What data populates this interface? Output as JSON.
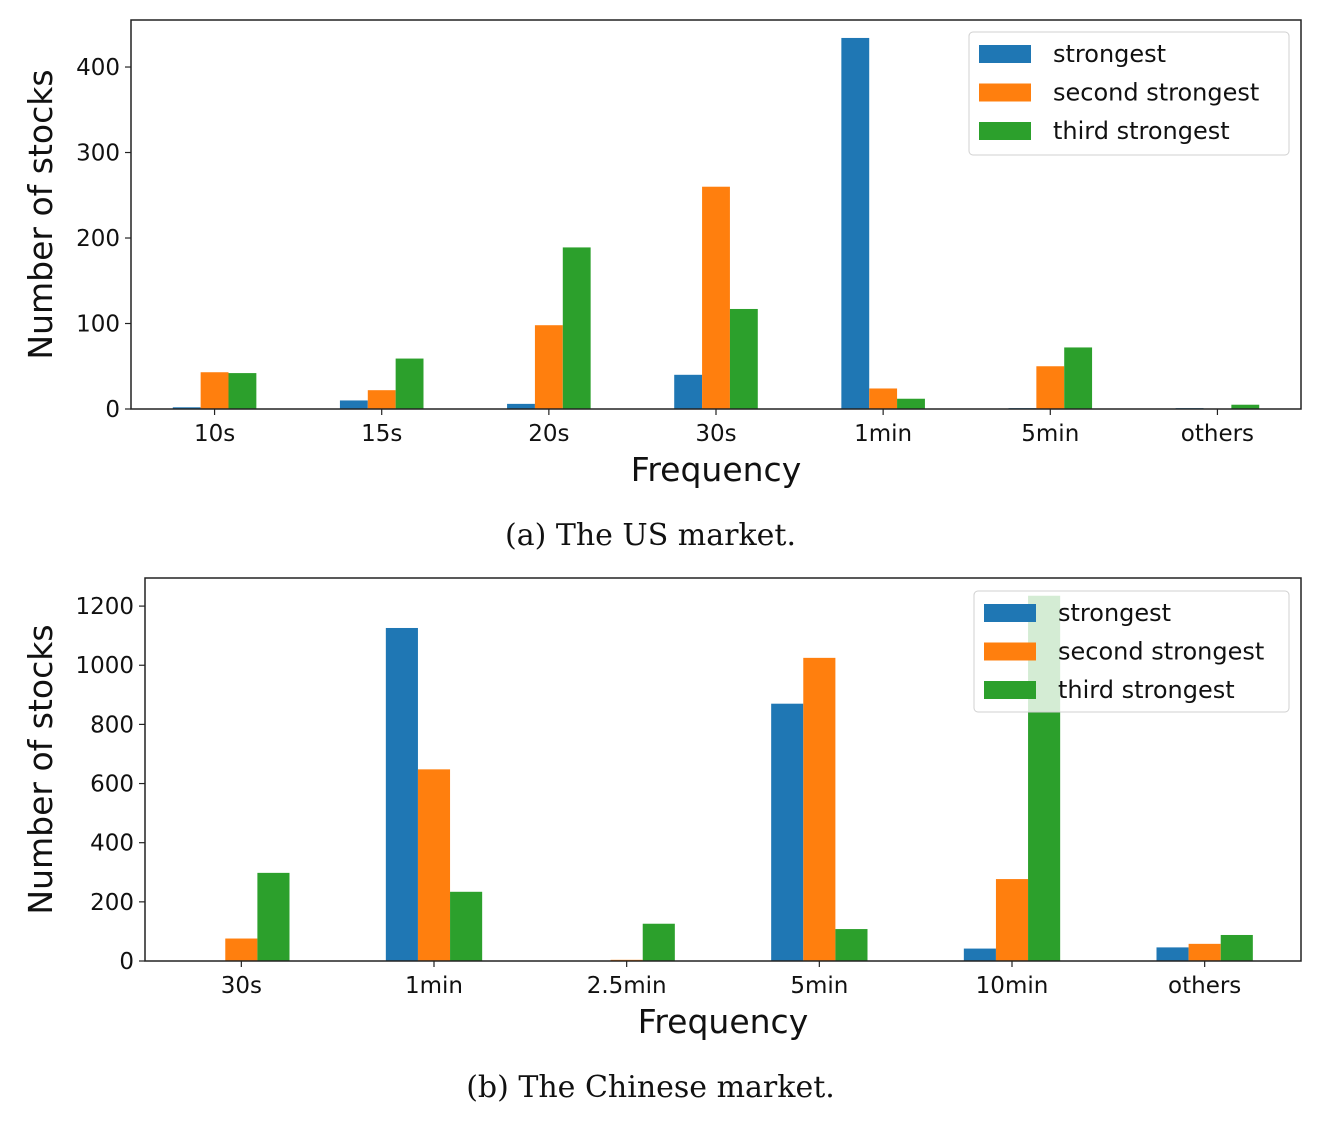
{
  "chart_data": [
    {
      "type": "bar",
      "title": "",
      "caption": "(a) The US market.",
      "xlabel": "Frequency",
      "ylabel": "Number of stocks",
      "categories": [
        "10s",
        "15s",
        "20s",
        "30s",
        "1min",
        "5min",
        "others"
      ],
      "ylim": [
        0,
        455
      ],
      "yticks": [
        0,
        100,
        200,
        300,
        400
      ],
      "grid": false,
      "legend": "top-right",
      "series": [
        {
          "name": "strongest",
          "color": "#1f77b4",
          "values": [
            2,
            10,
            6,
            40,
            434,
            1,
            1
          ]
        },
        {
          "name": "second strongest",
          "color": "#ff7f0e",
          "values": [
            43,
            22,
            98,
            260,
            24,
            50,
            0
          ]
        },
        {
          "name": "third strongest",
          "color": "#2ca02c",
          "values": [
            42,
            59,
            189,
            117,
            12,
            72,
            5
          ]
        }
      ]
    },
    {
      "type": "bar",
      "title": "",
      "caption": "(b) The Chinese market.",
      "xlabel": "Frequency",
      "ylabel": "Number of stocks",
      "categories": [
        "30s",
        "1min",
        "2.5min",
        "5min",
        "10min",
        "others"
      ],
      "ylim": [
        0,
        1295
      ],
      "yticks": [
        0,
        200,
        400,
        600,
        800,
        1000,
        1200
      ],
      "grid": false,
      "legend": "top-right",
      "series": [
        {
          "name": "strongest",
          "color": "#1f77b4",
          "values": [
            0,
            1126,
            0,
            870,
            42,
            46
          ]
        },
        {
          "name": "second strongest",
          "color": "#ff7f0e",
          "values": [
            76,
            648,
            4,
            1025,
            277,
            58
          ]
        },
        {
          "name": "third strongest",
          "color": "#2ca02c",
          "values": [
            298,
            234,
            126,
            108,
            1235,
            88
          ]
        }
      ]
    }
  ]
}
